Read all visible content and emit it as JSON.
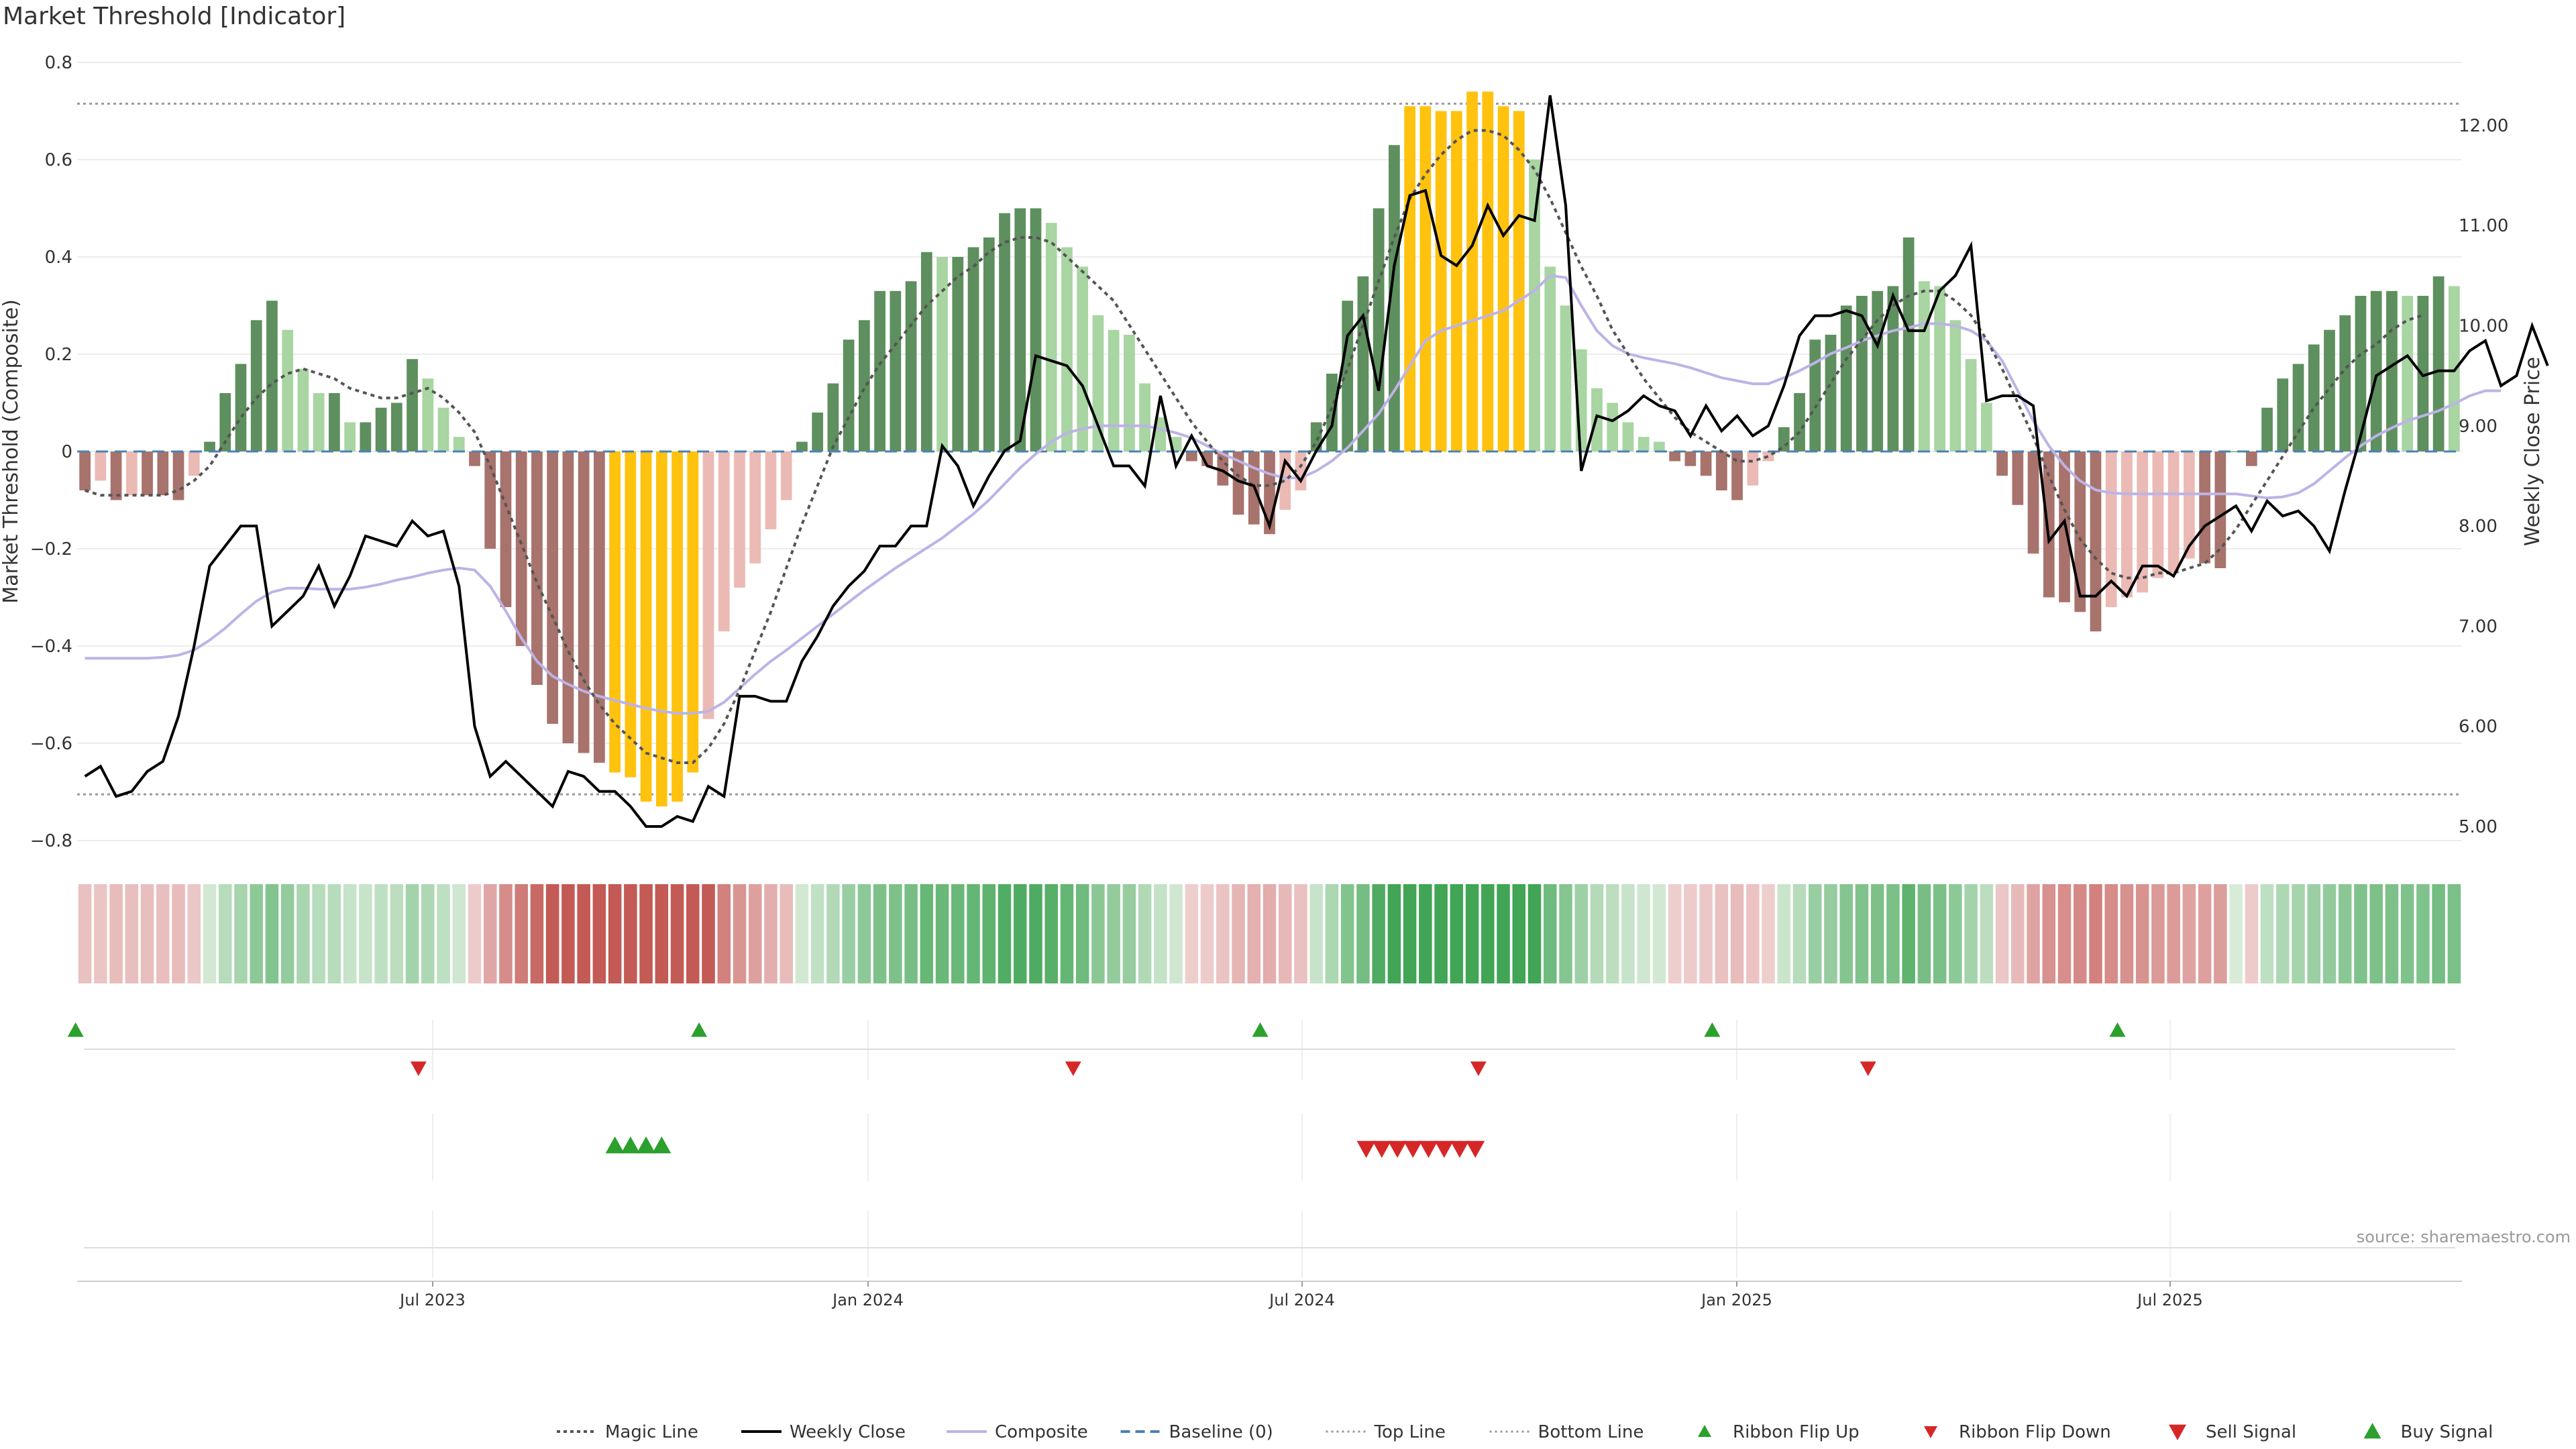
{
  "title": "Market Threshold [Indicator]",
  "source": "source: sharemaestro.com",
  "colors": {
    "dark_green": "#5e8f5e",
    "light_green": "#a8d5a2",
    "dark_red": "#a8736c",
    "light_red": "#ebbab4",
    "gold": "#ffc20e",
    "composite": "#bdb3e6",
    "close": "#000000",
    "magic": "#555555",
    "baseline": "#4a82b4",
    "threshold": "#999999",
    "ribbon_green": "#3aa655",
    "ribbon_red": "#c8564f",
    "buy": "#2ca02c",
    "sell": "#d62728"
  },
  "chart_data": {
    "type": "bar",
    "x_ticks": [
      "Jul 2023",
      "Jan 2024",
      "Jul 2024",
      "Jan 2025",
      "Jul 2025"
    ],
    "left_axis": {
      "label": "Market Threshold (Composite)",
      "ticks": [
        "0.8",
        "0.6",
        "0.4",
        "0.2",
        "0",
        "−0.2",
        "−0.4",
        "−0.6",
        "−0.8"
      ],
      "ylim": [
        -0.8,
        0.8
      ]
    },
    "right_axis": {
      "label": "Weekly Close Price",
      "ticks": [
        "12.00",
        "11.00",
        "10.00",
        "9.00",
        "8.00",
        "7.00",
        "6.00",
        "5.00"
      ],
      "ylim": [
        4.6,
        12.7
      ]
    },
    "top_line": 0.715,
    "bottom_line": -0.705,
    "baseline": 0,
    "composite_bars": [
      -0.08,
      -0.06,
      -0.1,
      -0.09,
      -0.09,
      -0.09,
      -0.1,
      -0.05,
      0.02,
      0.12,
      0.18,
      0.27,
      0.31,
      0.25,
      0.17,
      0.12,
      0.12,
      0.06,
      0.06,
      0.09,
      0.1,
      0.19,
      0.15,
      0.09,
      0.03,
      -0.03,
      -0.2,
      -0.32,
      -0.4,
      -0.48,
      -0.56,
      -0.6,
      -0.62,
      -0.64,
      -0.66,
      -0.67,
      -0.72,
      -0.73,
      -0.72,
      -0.66,
      -0.55,
      -0.37,
      -0.28,
      -0.23,
      -0.16,
      -0.1,
      0.02,
      0.08,
      0.14,
      0.23,
      0.27,
      0.33,
      0.33,
      0.35,
      0.41,
      0.4,
      0.4,
      0.42,
      0.44,
      0.49,
      0.5,
      0.5,
      0.47,
      0.42,
      0.38,
      0.28,
      0.25,
      0.24,
      0.14,
      0.07,
      0.03,
      -0.02,
      -0.03,
      -0.07,
      -0.13,
      -0.15,
      -0.17,
      -0.12,
      -0.08,
      0.06,
      0.16,
      0.31,
      0.36,
      0.5,
      0.63,
      0.71,
      0.71,
      0.7,
      0.7,
      0.74,
      0.74,
      0.71,
      0.7,
      0.6,
      0.38,
      0.3,
      0.21,
      0.13,
      0.1,
      0.06,
      0.03,
      0.02,
      -0.02,
      -0.03,
      -0.05,
      -0.08,
      -0.1,
      -0.07,
      -0.02,
      0.05,
      0.12,
      0.23,
      0.24,
      0.3,
      0.32,
      0.33,
      0.34,
      0.44,
      0.35,
      0.34,
      0.27,
      0.19,
      0.1,
      -0.05,
      -0.11,
      -0.21,
      -0.3,
      -0.31,
      -0.33,
      -0.37,
      -0.32,
      -0.3,
      -0.29,
      -0.26,
      -0.25,
      -0.22,
      -0.23,
      -0.24,
      0.0,
      -0.03,
      0.09,
      0.15,
      0.18,
      0.22,
      0.25,
      0.28,
      0.32,
      0.33,
      0.33,
      0.32,
      0.32,
      0.36,
      0.34
    ],
    "magic_line": [
      -0.08,
      -0.09,
      -0.09,
      -0.09,
      -0.09,
      -0.09,
      -0.08,
      -0.06,
      -0.03,
      0.02,
      0.07,
      0.11,
      0.14,
      0.16,
      0.17,
      0.16,
      0.15,
      0.13,
      0.12,
      0.11,
      0.11,
      0.12,
      0.13,
      0.11,
      0.08,
      0.04,
      -0.03,
      -0.11,
      -0.19,
      -0.27,
      -0.34,
      -0.41,
      -0.47,
      -0.52,
      -0.56,
      -0.59,
      -0.62,
      -0.63,
      -0.64,
      -0.64,
      -0.61,
      -0.56,
      -0.49,
      -0.41,
      -0.33,
      -0.24,
      -0.15,
      -0.07,
      0.01,
      0.07,
      0.13,
      0.18,
      0.22,
      0.26,
      0.3,
      0.33,
      0.36,
      0.38,
      0.41,
      0.43,
      0.44,
      0.44,
      0.43,
      0.4,
      0.37,
      0.34,
      0.31,
      0.26,
      0.21,
      0.16,
      0.11,
      0.06,
      0.02,
      -0.02,
      -0.05,
      -0.07,
      -0.07,
      -0.06,
      -0.03,
      0.02,
      0.09,
      0.17,
      0.26,
      0.35,
      0.44,
      0.52,
      0.57,
      0.61,
      0.64,
      0.66,
      0.66,
      0.65,
      0.62,
      0.58,
      0.52,
      0.45,
      0.38,
      0.32,
      0.25,
      0.2,
      0.15,
      0.11,
      0.07,
      0.04,
      0.02,
      0.0,
      -0.02,
      -0.02,
      -0.01,
      0.01,
      0.04,
      0.09,
      0.14,
      0.19,
      0.23,
      0.27,
      0.3,
      0.32,
      0.33,
      0.33,
      0.31,
      0.28,
      0.23,
      0.17,
      0.1,
      0.03,
      -0.05,
      -0.12,
      -0.18,
      -0.22,
      -0.25,
      -0.26,
      -0.26,
      -0.25,
      -0.25,
      -0.24,
      -0.23,
      -0.2,
      -0.16,
      -0.11,
      -0.06,
      -0.01,
      0.04,
      0.09,
      0.13,
      0.17,
      0.2,
      0.22,
      0.25,
      0.27,
      0.28
    ],
    "weekly_close": [
      5.5,
      5.6,
      5.3,
      5.35,
      5.55,
      5.65,
      6.1,
      6.8,
      7.6,
      7.8,
      8.0,
      8.0,
      7.0,
      7.15,
      7.3,
      7.6,
      7.2,
      7.5,
      7.9,
      7.85,
      7.8,
      8.05,
      7.9,
      7.95,
      7.4,
      6.0,
      5.5,
      5.65,
      5.5,
      5.35,
      5.2,
      5.55,
      5.5,
      5.35,
      5.35,
      5.2,
      5.0,
      5.0,
      5.1,
      5.05,
      5.4,
      5.3,
      6.3,
      6.3,
      6.25,
      6.25,
      6.65,
      6.9,
      7.2,
      7.4,
      7.55,
      7.8,
      7.8,
      8.0,
      8.0,
      8.8,
      8.6,
      8.2,
      8.5,
      8.75,
      8.85,
      9.7,
      9.65,
      9.6,
      9.4,
      9.0,
      8.6,
      8.6,
      8.4,
      9.3,
      8.6,
      8.9,
      8.6,
      8.55,
      8.45,
      8.4,
      8.0,
      8.65,
      8.45,
      8.75,
      9.0,
      9.9,
      10.1,
      9.35,
      10.6,
      11.3,
      11.35,
      10.7,
      10.6,
      10.8,
      11.2,
      10.9,
      11.1,
      11.05,
      12.3,
      11.2,
      8.55,
      9.1,
      9.05,
      9.15,
      9.3,
      9.2,
      9.15,
      8.9,
      9.2,
      8.95,
      9.1,
      8.9,
      9.0,
      9.4,
      9.9,
      10.1,
      10.1,
      10.15,
      10.1,
      9.8,
      10.3,
      9.95,
      9.95,
      10.35,
      10.5,
      10.8,
      9.25,
      9.3,
      9.3,
      9.2,
      7.85,
      8.05,
      7.3,
      7.3,
      7.45,
      7.3,
      7.6,
      7.6,
      7.5,
      7.8,
      8.0,
      8.1,
      8.2,
      7.95,
      8.25,
      8.1,
      8.15,
      8.0,
      7.75,
      8.35,
      8.9,
      9.5,
      9.6,
      9.7,
      9.5,
      9.55,
      9.55,
      9.75,
      9.85,
      9.4,
      9.5,
      10.0,
      9.6
    ],
    "composite_line": [
      6.68,
      6.68,
      6.68,
      6.68,
      6.68,
      6.69,
      6.71,
      6.76,
      6.86,
      6.98,
      7.12,
      7.25,
      7.34,
      7.38,
      7.38,
      7.37,
      7.37,
      7.37,
      7.39,
      7.42,
      7.46,
      7.49,
      7.53,
      7.56,
      7.58,
      7.56,
      7.4,
      7.15,
      6.88,
      6.65,
      6.5,
      6.42,
      6.35,
      6.3,
      6.26,
      6.22,
      6.18,
      6.15,
      6.13,
      6.13,
      6.15,
      6.24,
      6.38,
      6.52,
      6.65,
      6.76,
      6.88,
      7.0,
      7.12,
      7.24,
      7.36,
      7.47,
      7.58,
      7.68,
      7.78,
      7.88,
      8.0,
      8.12,
      8.26,
      8.42,
      8.58,
      8.72,
      8.84,
      8.93,
      8.97,
      9.0,
      9.0,
      9.0,
      9.0,
      8.97,
      8.93,
      8.88,
      8.8,
      8.72,
      8.65,
      8.58,
      8.52,
      8.48,
      8.48,
      8.55,
      8.65,
      8.78,
      8.95,
      9.12,
      9.35,
      9.6,
      9.85,
      9.95,
      10.0,
      10.05,
      10.1,
      10.15,
      10.25,
      10.35,
      10.5,
      10.48,
      10.2,
      9.95,
      9.8,
      9.72,
      9.68,
      9.65,
      9.62,
      9.58,
      9.53,
      9.48,
      9.45,
      9.42,
      9.42,
      9.48,
      9.55,
      9.63,
      9.72,
      9.78,
      9.85,
      9.9,
      9.95,
      9.98,
      10.02,
      10.02,
      10.0,
      9.95,
      9.85,
      9.65,
      9.35,
      9.05,
      8.8,
      8.6,
      8.45,
      8.36,
      8.33,
      8.32,
      8.32,
      8.32,
      8.32,
      8.32,
      8.32,
      8.32,
      8.32,
      8.3,
      8.28,
      8.29,
      8.33,
      8.42,
      8.55,
      8.68,
      8.8,
      8.9,
      8.98,
      9.05,
      9.1,
      9.15,
      9.22,
      9.3,
      9.35,
      9.35
    ],
    "gold_bars_note": "highlighted gold at extremes",
    "ribbon_signal": "color intensity per week (positive green, negative red)",
    "ribbon_flip_up_weeks": [
      1,
      41,
      77,
      106,
      132
    ],
    "ribbon_flip_down_weeks": [
      23,
      65,
      91,
      116
    ],
    "buy_signal_weeks": [
      34,
      35,
      36,
      37
    ],
    "sell_signal_weeks": [
      81,
      82,
      83,
      84,
      85,
      86,
      87,
      88
    ],
    "legend": [
      {
        "label": "Magic Line",
        "style": "dotted"
      },
      {
        "label": "Weekly Close",
        "style": "solid-black"
      },
      {
        "label": "Composite",
        "style": "solid-lavender"
      },
      {
        "label": "Baseline (0)",
        "style": "dashed-blue"
      },
      {
        "label": "Top Line",
        "style": "dotted-gray"
      },
      {
        "label": "Bottom Line",
        "style": "dotted-gray"
      },
      {
        "label": "Ribbon Flip Up",
        "style": "tri-up-green"
      },
      {
        "label": "Ribbon Flip Down",
        "style": "tri-down-red"
      },
      {
        "label": "Sell Signal",
        "style": "tri-down-red-large"
      },
      {
        "label": "Buy Signal",
        "style": "tri-up-green-large"
      }
    ]
  }
}
